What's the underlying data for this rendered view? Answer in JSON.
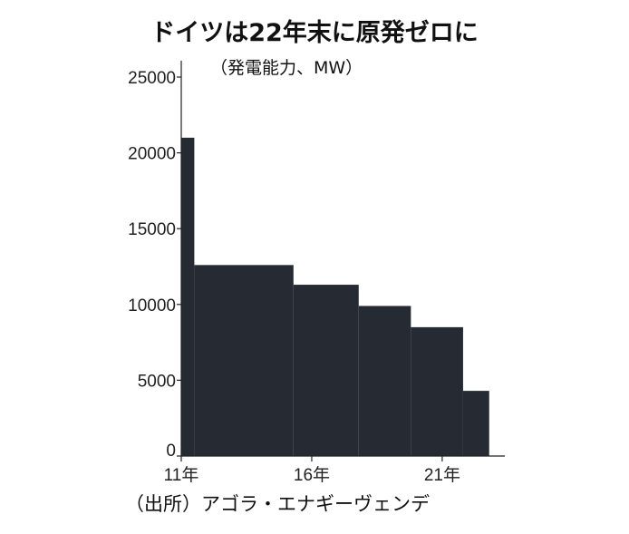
{
  "chart_data": {
    "type": "bar",
    "title": "ドイツは22年末に原発ゼロに",
    "subtitle": "（発電能力、MW）",
    "source": "（出所）アゴラ・エナギーヴェンデ",
    "x_tick_labels": [
      {
        "label": "11年",
        "year": 2011
      },
      {
        "label": "16年",
        "year": 2016
      },
      {
        "label": "21年",
        "year": 2021
      }
    ],
    "y_tick_labels": [
      "0",
      "5000",
      "10000",
      "15000",
      "20000",
      "25000"
    ],
    "ylim": [
      0,
      25000
    ],
    "xlim": [
      2011,
      2023.4
    ],
    "steps": [
      {
        "start": 2011.0,
        "end": 2011.5,
        "value": 21000
      },
      {
        "start": 2011.5,
        "end": 2015.3,
        "value": 12600
      },
      {
        "start": 2015.3,
        "end": 2017.8,
        "value": 11300
      },
      {
        "start": 2017.8,
        "end": 2019.8,
        "value": 9900
      },
      {
        "start": 2019.8,
        "end": 2021.8,
        "value": 8500
      },
      {
        "start": 2021.8,
        "end": 2022.8,
        "value": 4300
      }
    ],
    "bar_color": "#262a33",
    "grid": false
  }
}
